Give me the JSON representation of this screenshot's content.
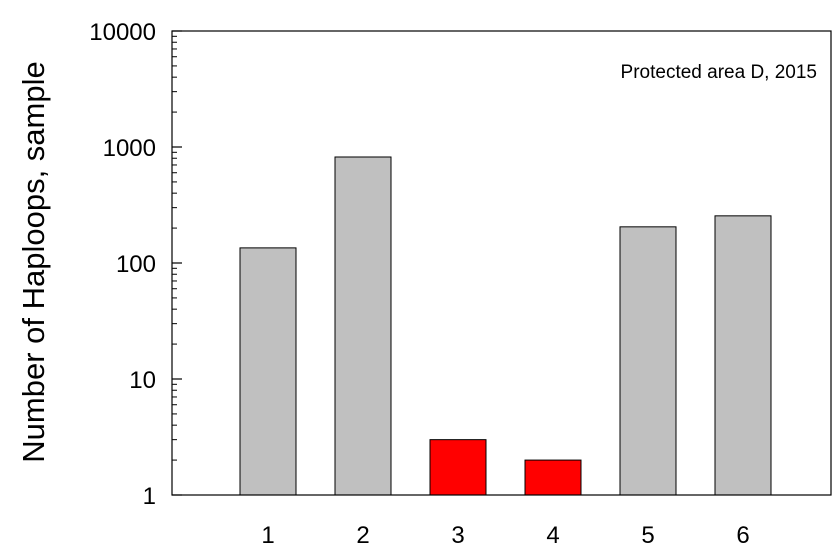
{
  "chart_data": {
    "type": "bar",
    "title": "",
    "xlabel": "",
    "ylabel": "Number of Haploops, sample",
    "annotation": "Protected area D, 2015",
    "y_scale": "log",
    "ylim": [
      1,
      10000
    ],
    "y_ticks": [
      "1",
      "10",
      "100",
      "1000",
      "10000"
    ],
    "categories": [
      "1",
      "2",
      "3",
      "4",
      "5",
      "6"
    ],
    "values": [
      135,
      820,
      3,
      2,
      205,
      255
    ],
    "bar_colors": [
      "#c0c0c0",
      "#c0c0c0",
      "#ff0000",
      "#ff0000",
      "#c0c0c0",
      "#c0c0c0"
    ],
    "grid": false,
    "legend": "none"
  }
}
